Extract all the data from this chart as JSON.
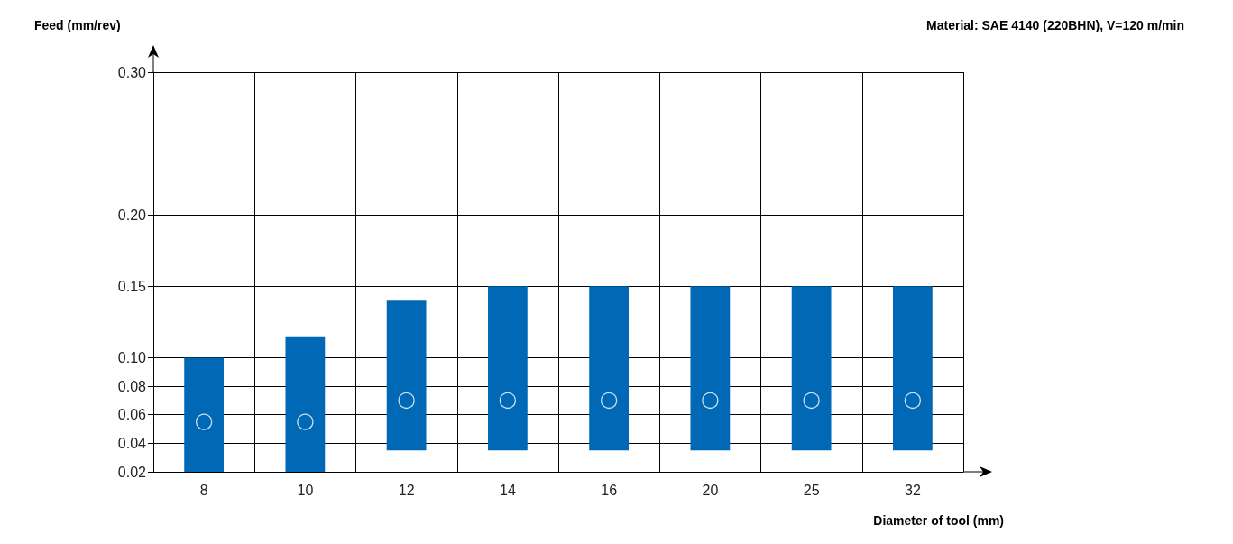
{
  "chart_data": {
    "type": "bar",
    "title": "Material: SAE 4140 (220BHN), V=120 m/min",
    "xlabel": "Diameter of tool (mm)",
    "ylabel": "Feed (mm/rev)",
    "categories": [
      "8",
      "10",
      "12",
      "14",
      "16",
      "20",
      "25",
      "32"
    ],
    "series": [
      {
        "color": "#0068b4",
        "base": [
          0.02,
          0.02,
          0.035,
          0.035,
          0.035,
          0.035,
          0.035,
          0.035
        ],
        "values": [
          0.08,
          0.095,
          0.105,
          0.115,
          0.115,
          0.115,
          0.115,
          0.115
        ]
      },
      {
        "type": "scatter",
        "color": "#ffffff",
        "marker": "circle",
        "x": [
          "8",
          "10",
          "12",
          "14",
          "16",
          "20",
          "25",
          "32"
        ],
        "values": [
          0.055,
          0.055,
          0.07,
          0.07,
          0.07,
          0.07,
          0.07,
          0.07
        ]
      }
    ],
    "ylim": [
      0.02,
      0.3
    ],
    "yticks": [
      0.02,
      0.04,
      0.06,
      0.08,
      {
        "value": 0.1,
        "label": "0.10"
      },
      0.15,
      {
        "value": 0.2,
        "label": "0.20"
      },
      {
        "value": 0.3,
        "label": "0.30"
      }
    ],
    "grid": true
  }
}
